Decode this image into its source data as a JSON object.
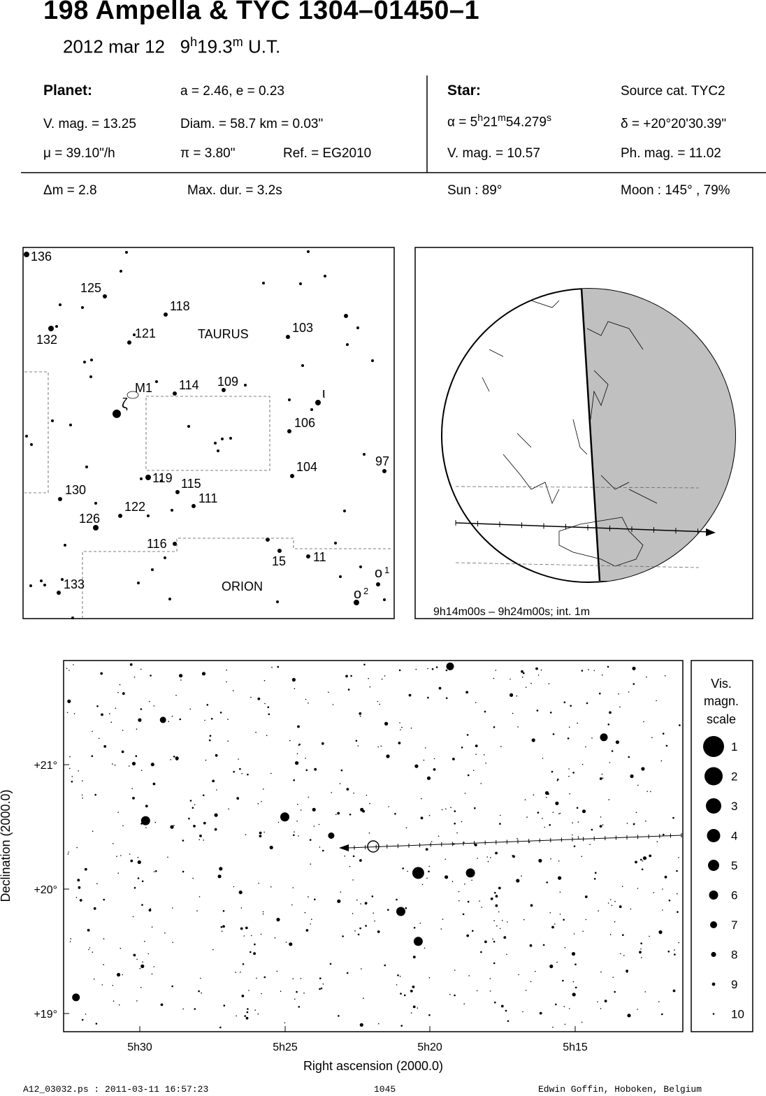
{
  "header": {
    "title": "198 Ampella  &  TYC 1304–01450–1",
    "date": "2012 mar 12",
    "time_h": "9",
    "time_h_unit": "h",
    "time_m": "19.3",
    "time_m_unit": "m",
    "time_suffix": "U.T."
  },
  "planet": {
    "heading": "Planet:",
    "orbit": "a = 2.46, e = 0.23",
    "vmag": "V. mag. = 13.25",
    "diam": "Diam. = 58.7 km = 0.03\"",
    "mu": "μ =  39.10\"/h",
    "pi": "π =  3.80\"",
    "ref": "Ref. = EG2010"
  },
  "star": {
    "heading": "Star:",
    "source": "Source cat.  TYC2",
    "alpha_prefix": "α =  5",
    "alpha_h": "h",
    "alpha_min": "21",
    "alpha_m": "m",
    "alpha_sec": "54.279",
    "alpha_s": "s",
    "delta": "δ = +20°20'30.39\"",
    "vmag": "V. mag. = 10.57",
    "phmag": "Ph. mag. = 11.02"
  },
  "event": {
    "dm": "Δm = 2.8",
    "maxdur": "Max. dur. = 3.2s",
    "sun": "Sun :  89°",
    "moon": "Moon : 145° , 79%"
  },
  "finder": {
    "constellations": [
      "TAURUS",
      "ORION"
    ],
    "star_labels": [
      "136",
      "125",
      "118",
      "132",
      "121",
      "103",
      "M1",
      "114",
      "109",
      "106",
      "97",
      "104",
      "119",
      "115",
      "130",
      "111",
      "122",
      "126",
      "116",
      "11",
      "15",
      "133"
    ],
    "greek_labels": [
      "ζ",
      "ι",
      "o",
      "o"
    ],
    "greek_superscripts": [
      "1",
      "2"
    ]
  },
  "globe": {
    "caption": "9h14m00s –  9h24m00s; int.  1m"
  },
  "chart_data": {
    "type": "scatter",
    "xlabel": "Right ascension (2000.0)",
    "ylabel": "Declination (2000.0)",
    "x_ticks": [
      "5h30",
      "5h25",
      "5h20",
      "5h15"
    ],
    "y_ticks": [
      "+21°",
      "+20°",
      "+19°"
    ],
    "target_star": {
      "ra": "5h21m54.279s",
      "dec": "+20°20'30.39\""
    },
    "bright_stars": [
      {
        "ra_min": 29.8,
        "dec": 20.55,
        "mag": 3
      },
      {
        "ra_min": 25.0,
        "dec": 20.58,
        "mag": 3
      },
      {
        "ra_min": 20.4,
        "dec": 20.13,
        "mag": 2
      },
      {
        "ra_min": 18.6,
        "dec": 20.13,
        "mag": 3
      },
      {
        "ra_min": 21.0,
        "dec": 19.82,
        "mag": 3
      },
      {
        "ra_min": 20.4,
        "dec": 19.58,
        "mag": 3
      },
      {
        "ra_min": 14.0,
        "dec": 21.22,
        "mag": 4
      },
      {
        "ra_min": 19.3,
        "dec": 21.79,
        "mag": 4
      },
      {
        "ra_min": 32.2,
        "dec": 19.13,
        "mag": 4
      },
      {
        "ra_min": 29.2,
        "dec": 21.36,
        "mag": 5
      },
      {
        "ra_min": 23.4,
        "dec": 20.43,
        "mag": 5
      }
    ]
  },
  "legend": {
    "title_lines": [
      "Vis.",
      "magn.",
      "scale"
    ],
    "items": [
      "1",
      "2",
      "3",
      "4",
      "5",
      "6",
      "7",
      "8",
      "9",
      "10"
    ]
  },
  "footer": {
    "file": "A12_03032.ps : 2011-03-11 16:57:23",
    "number": "1045",
    "author": "Edwin Goffin, Hoboken, Belgium"
  }
}
